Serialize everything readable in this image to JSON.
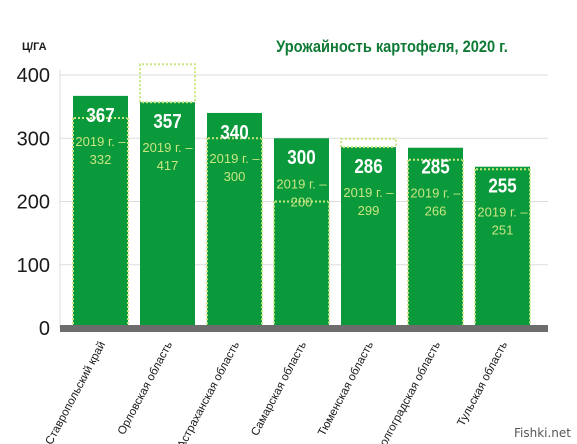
{
  "chart_data": {
    "type": "bar",
    "title": "Урожайность картофеля, 2020 г.",
    "ylabel": "Ц/ГА",
    "ylim": [
      0,
      400
    ],
    "yticks": [
      0,
      100,
      200,
      300,
      400
    ],
    "grid": true,
    "categories": [
      "Ставропольский край",
      "Орловская область",
      "Астраханская область",
      "Самарская область",
      "Тюменская область",
      "Волгоградская область",
      "Тульская область"
    ],
    "series": [
      {
        "name": "2020",
        "values": [
          367,
          357,
          340,
          300,
          286,
          285,
          255
        ]
      },
      {
        "name": "2019",
        "values": [
          332,
          417,
          300,
          200,
          299,
          266,
          251
        ]
      }
    ],
    "bar_labels": [
      "367",
      "357",
      "340",
      "300",
      "286",
      "285",
      "255"
    ],
    "prev_labels": [
      "2019 г. –",
      "332",
      "2019 г. –",
      "417",
      "2019 г. –",
      "300",
      "2019 г. –",
      "200",
      "2019 г. –",
      "299",
      "2019 г. –",
      "266",
      "2019 г. –",
      "251"
    ],
    "colors": {
      "bar": "#0a9a3c",
      "prev_line": "#c8e680",
      "title": "#0f7a35",
      "grid": "#dddddd",
      "axis_base": "#6d6d6d",
      "text": "#1a1a1a"
    }
  },
  "watermark": "Fishki.net"
}
